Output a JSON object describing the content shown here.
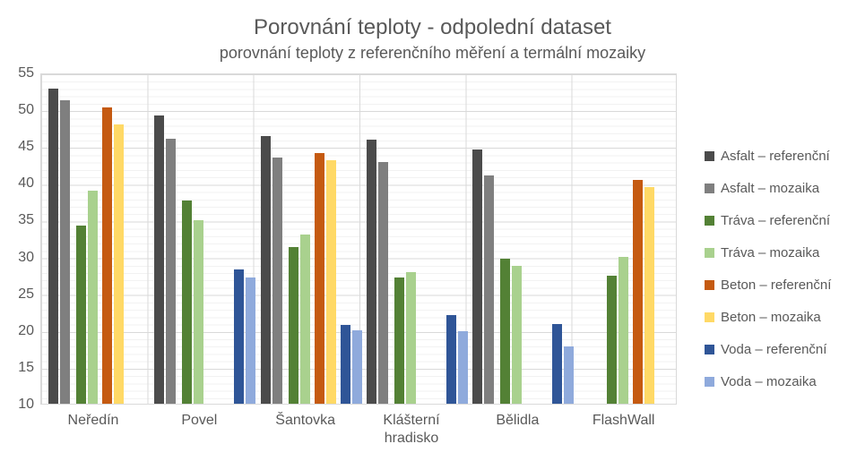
{
  "chart_data": {
    "type": "bar",
    "title": "Porovnání teploty - odpolední dataset",
    "subtitle": "porovnání teploty z referenčního měření a termální mozaiky",
    "categories": [
      "Neředín",
      "Povel",
      "Šantovka",
      "Klášterní hradisko",
      "Bělidla",
      "FlashWall"
    ],
    "series": [
      {
        "name": "Asfalt – referenční",
        "color": "#4b4b4b",
        "values": [
          52.8,
          49.2,
          46.4,
          45.9,
          44.5,
          null
        ]
      },
      {
        "name": "Asfalt – mozaika",
        "color": "#7f7f7f",
        "values": [
          51.2,
          46.0,
          43.5,
          42.9,
          41.0,
          null
        ]
      },
      {
        "name": "Tráva – referenční",
        "color": "#538135",
        "values": [
          34.2,
          37.6,
          31.3,
          27.2,
          29.7,
          27.4
        ]
      },
      {
        "name": "Tráva – mozaika",
        "color": "#a9d18e",
        "values": [
          39.0,
          34.9,
          33.0,
          27.9,
          28.7,
          30.0
        ]
      },
      {
        "name": "Beton – referenční",
        "color": "#c55a11",
        "values": [
          50.3,
          null,
          44.0,
          null,
          null,
          40.4
        ]
      },
      {
        "name": "Beton – mozaika",
        "color": "#ffd966",
        "values": [
          48.0,
          null,
          43.1,
          null,
          null,
          39.4
        ]
      },
      {
        "name": "Voda – referenční",
        "color": "#2f5597",
        "values": [
          null,
          28.3,
          20.7,
          22.0,
          20.8,
          null
        ]
      },
      {
        "name": "Voda – mozaika",
        "color": "#8faadc",
        "values": [
          null,
          27.1,
          20.0,
          19.9,
          17.8,
          null
        ]
      }
    ],
    "ylim": [
      10,
      55
    ],
    "yticks": [
      55,
      50,
      45,
      40,
      35,
      30,
      25,
      20,
      15,
      10
    ],
    "grid": "major-and-minor horizontal, vertical category separators",
    "legend_position": "right"
  }
}
